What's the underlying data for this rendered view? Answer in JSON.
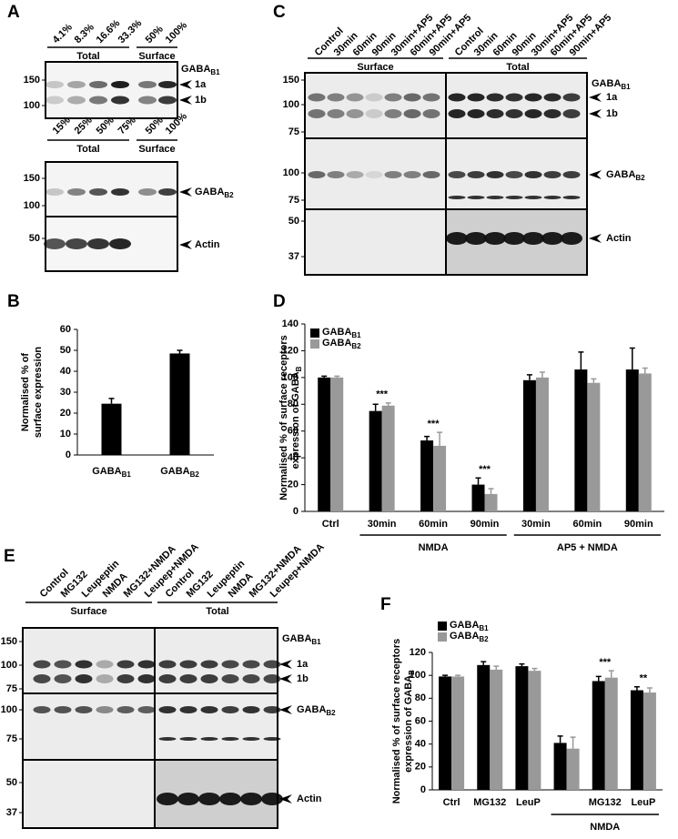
{
  "panel_labels": [
    "A",
    "B",
    "C",
    "D",
    "E",
    "F"
  ],
  "blots": {
    "A_top": {
      "lanes": [
        "4.1%",
        "8.3%",
        "16.6%",
        "33.3%",
        "50%",
        "100%"
      ],
      "groups": [
        "Total",
        "Surface"
      ],
      "markers": [
        150,
        100
      ],
      "protein": "GABA",
      "protein_sub": "B1",
      "bands": [
        "1a",
        "1b"
      ]
    },
    "A_bottom": {
      "lanes": [
        "15%",
        "25%",
        "50%",
        "75%",
        "50%",
        "100%"
      ],
      "groups": [
        "Total",
        "Surface"
      ],
      "markers": [
        150,
        100,
        50
      ],
      "protein": "GABA",
      "protein_sub": "B2",
      "loading": "Actin"
    },
    "C": {
      "lanes": [
        "Control",
        "30min",
        "60min",
        "90min",
        "30min+AP5",
        "60min+AP5",
        "90min+AP5",
        "Control",
        "30min",
        "60min",
        "90min",
        "30min+AP5",
        "60min+AP5",
        "90min+AP5"
      ],
      "groups": [
        "Surface",
        "Total"
      ],
      "markers_b1": [
        150,
        100,
        75
      ],
      "markers_b2": [
        100,
        75
      ],
      "markers_actin": [
        50,
        37
      ],
      "protein_b1": "GABA",
      "protein_b1_sub": "B1",
      "bands": [
        "1a",
        "1b"
      ],
      "protein_b2": "GABA",
      "protein_b2_sub": "B2",
      "loading": "Actin"
    },
    "E": {
      "lanes": [
        "Control",
        "MG132",
        "Leupeptin",
        "NMDA",
        "MG132+NMDA",
        "Leupep+NMDA",
        "Control",
        "MG132",
        "Leupeptin",
        "NMDA",
        "MG132+NMDA",
        "Leupep+NMDA"
      ],
      "groups": [
        "Surface",
        "Total"
      ],
      "markers_b1": [
        150,
        100,
        75
      ],
      "markers_b2": [
        100,
        75
      ],
      "markers_actin": [
        50,
        37
      ],
      "protein_b1": "GABA",
      "protein_b1_sub": "B1",
      "bands": [
        "1a",
        "1b"
      ],
      "protein_b2": "GABA",
      "protein_b2_sub": "B2",
      "loading": "Actin"
    }
  },
  "chart_data": [
    {
      "type": "bar",
      "ylabel": [
        "Normalised % of",
        "surface expression"
      ],
      "categories": [
        "GABA",
        "GABA"
      ],
      "category_subs": [
        "B1",
        "B2"
      ],
      "values": [
        24.5,
        48.5
      ],
      "errors": [
        2.5,
        1.5
      ],
      "color": "#000000",
      "ylim": [
        0,
        60
      ],
      "yticks": [
        0,
        10,
        20,
        30,
        40,
        50,
        60
      ]
    },
    {
      "type": "bar",
      "ylabel": [
        "Normalised % of surface receptors",
        "expression of GABA"
      ],
      "ylabel_sub": "B",
      "categories": [
        "Ctrl",
        "30min",
        "60min",
        "90min",
        "30min",
        "60min",
        "90min"
      ],
      "series": [
        {
          "name": "GABA",
          "name_sub": "B1",
          "color": "#000000",
          "values": [
            100,
            75,
            53,
            20,
            98,
            106,
            106
          ],
          "errors": [
            1,
            5,
            3,
            5,
            4,
            13,
            16
          ]
        },
        {
          "name": "GABA",
          "name_sub": "B2",
          "color": "#999999",
          "values": [
            100,
            79,
            49,
            13,
            100,
            96,
            103
          ],
          "errors": [
            1,
            2,
            10,
            4,
            4,
            3,
            4
          ]
        }
      ],
      "significance": [
        null,
        "***",
        "***",
        "***",
        null,
        null,
        null
      ],
      "group_labels": [
        "NMDA",
        "AP5 + NMDA"
      ],
      "ylim": [
        0,
        140
      ],
      "yticks": [
        0,
        20,
        40,
        60,
        80,
        100,
        120,
        140
      ],
      "legend": "upper left"
    },
    {
      "type": "bar",
      "ylabel": [
        "Normalised % of surface receptors",
        "expression of GABA"
      ],
      "ylabel_sub": "B",
      "categories": [
        "Ctrl",
        "MG132",
        "LeuP",
        null,
        "MG132",
        "LeuP"
      ],
      "series": [
        {
          "name": "GABA",
          "name_sub": "B1",
          "color": "#000000",
          "values": [
            99,
            109,
            108,
            41,
            95,
            87
          ],
          "errors": [
            1,
            3,
            2,
            6,
            4,
            3
          ]
        },
        {
          "name": "GABA",
          "name_sub": "B2",
          "color": "#999999",
          "values": [
            99,
            105,
            104,
            36,
            98,
            85
          ],
          "errors": [
            1,
            3,
            2,
            10,
            6,
            4
          ]
        }
      ],
      "significance": [
        null,
        null,
        null,
        null,
        "***",
        "**"
      ],
      "group_labels": [
        "NMDA"
      ],
      "ylim": [
        0,
        120
      ],
      "yticks": [
        0,
        20,
        40,
        60,
        80,
        100,
        120
      ],
      "legend": "upper left"
    }
  ]
}
